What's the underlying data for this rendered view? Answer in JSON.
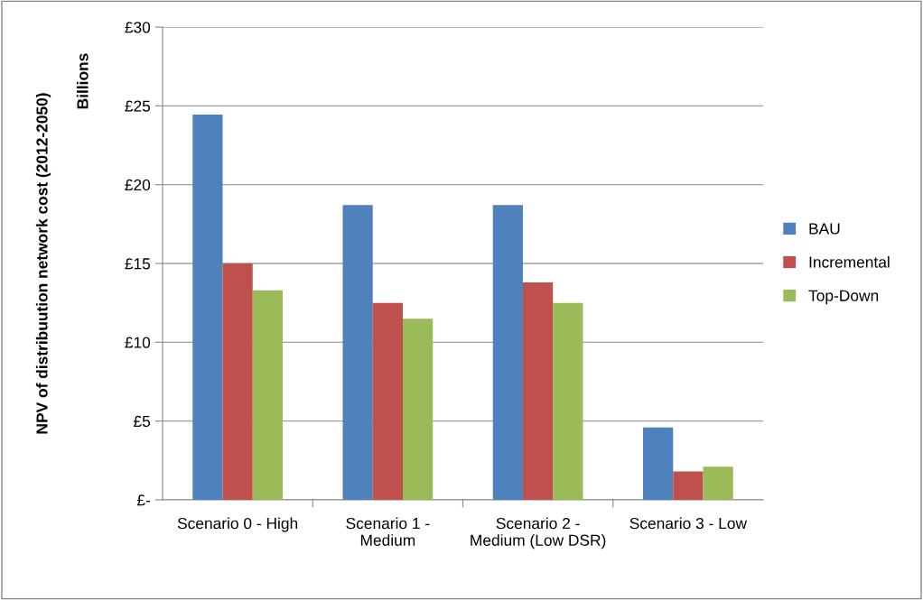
{
  "chart_data": {
    "type": "bar",
    "ylabel": "NPV of distribuution network cost (2012-2050)",
    "annotations": [
      "Billions"
    ],
    "categories": [
      "Scenario 0 - High",
      "Scenario 1 - Medium",
      "Scenario 2 - Medium (Low DSR)",
      "Scenario 3 - Low"
    ],
    "series": [
      {
        "name": "BAU",
        "color": "#4f81bd",
        "values": [
          24.45,
          18.7,
          18.7,
          4.6
        ]
      },
      {
        "name": "Incremental",
        "color": "#c0504d",
        "values": [
          15.0,
          12.5,
          13.8,
          1.8
        ]
      },
      {
        "name": "Top-Down",
        "color": "#9bbb59",
        "values": [
          13.3,
          11.5,
          12.5,
          2.1
        ]
      }
    ],
    "ylim": [
      0,
      30
    ],
    "yticks": [
      {
        "value": 0,
        "label": "£-"
      },
      {
        "value": 5,
        "label": "£5"
      },
      {
        "value": 10,
        "label": "£10"
      },
      {
        "value": 15,
        "label": "£15"
      },
      {
        "value": 20,
        "label": "£20"
      },
      {
        "value": 25,
        "label": "£25"
      },
      {
        "value": 30,
        "label": "£30"
      }
    ],
    "grid": "y",
    "legend": "right"
  }
}
